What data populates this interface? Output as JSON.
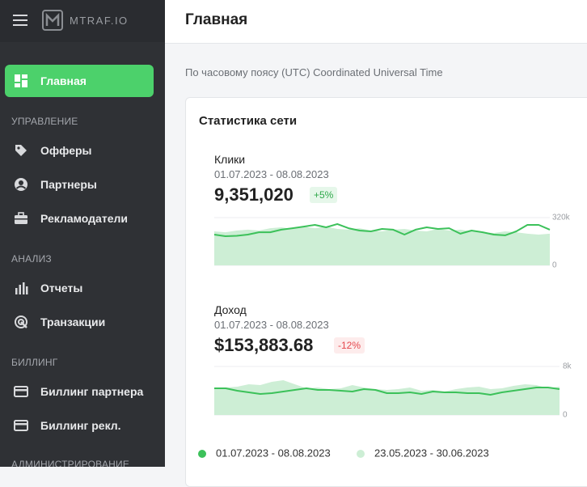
{
  "sidebar": {
    "logo": "MTRAF.IO",
    "active": "Главная",
    "sections": [
      {
        "title": "УПРАВЛЕНИЕ",
        "items": [
          "Офферы",
          "Партнеры",
          "Рекламодатели"
        ]
      },
      {
        "title": "АНАЛИЗ",
        "items": [
          "Отчеты",
          "Транзакции"
        ]
      },
      {
        "title": "БИЛЛИНГ",
        "items": [
          "Биллинг партнера",
          "Биллинг рекл."
        ]
      },
      {
        "title": "АДМИНИСТРИРОВАНИЕ",
        "items": []
      }
    ]
  },
  "header": {
    "title": "Главная"
  },
  "timezone": "По часовому поясу (UTC) Coordinated Universal Time",
  "stats": {
    "title": "Статистика сети",
    "cards": [
      {
        "label": "Клики",
        "period": "01.07.2023 - 08.08.2023",
        "value": "9,351,020",
        "change": "+5%",
        "chart": {
          "type": "line",
          "ylim": [
            0,
            320000
          ],
          "yticks": [
            {
              "value": 0,
              "label": "0"
            },
            {
              "value": 320000,
              "label": "320k"
            }
          ],
          "series": [
            {
              "color": "#3cc15a",
              "kind": "line",
              "values": [
                206000,
                195000,
                198000,
                206000,
                222000,
                222000,
                239000,
                249000,
                260000,
                271000,
                255000,
                277000,
                249000,
                233000,
                228000,
                244000,
                239000,
                206000,
                239000,
                255000,
                244000,
                249000,
                212000,
                233000,
                222000,
                206000,
                201000,
                228000,
                271000,
                271000,
                239000
              ]
            },
            {
              "color": "#cdeed5",
              "kind": "area",
              "values": [
                228000,
                222000,
                233000,
                239000,
                233000,
                249000,
                255000,
                244000,
                260000,
                249000,
                260000,
                244000,
                239000,
                249000,
                233000,
                228000,
                239000,
                244000,
                233000,
                228000,
                244000,
                233000,
                239000,
                228000,
                222000,
                217000,
                228000,
                222000,
                212000,
                206000,
                212000
              ]
            }
          ]
        }
      },
      {
        "label": "Доход",
        "period": "01.07.2023 - 08.08.2023",
        "value": "$153,883.68",
        "change": "-12%",
        "chart": {
          "type": "line",
          "ylim": [
            0,
            8000
          ],
          "yticks": [
            {
              "value": 0,
              "label": "0"
            },
            {
              "value": 8000,
              "label": "8k"
            }
          ],
          "series": [
            {
              "color": "#3cc15a",
              "kind": "line",
              "values": [
                4400,
                4400,
                4000,
                3733,
                3467,
                3600,
                3867,
                4133,
                4400,
                4133,
                4133,
                4000,
                3867,
                4267,
                4133,
                3600,
                3600,
                3733,
                3467,
                3867,
                3733,
                3733,
                3600,
                3600,
                3333,
                3733,
                4000,
                4267,
                4533,
                4533,
                4267
              ]
            },
            {
              "color": "#cdeed5",
              "kind": "area",
              "values": [
                4267,
                4533,
                4667,
                5067,
                4933,
                5467,
                5733,
                5067,
                4400,
                4533,
                4267,
                4400,
                4933,
                4533,
                4267,
                4133,
                4267,
                4533,
                4000,
                4133,
                3867,
                4267,
                4533,
                4667,
                4267,
                4400,
                4800,
                5067,
                4933,
                4400,
                4667
              ]
            }
          ]
        }
      }
    ],
    "legend": [
      "01.07.2023 - 08.08.2023",
      "23.05.2023 - 30.06.2023"
    ]
  }
}
